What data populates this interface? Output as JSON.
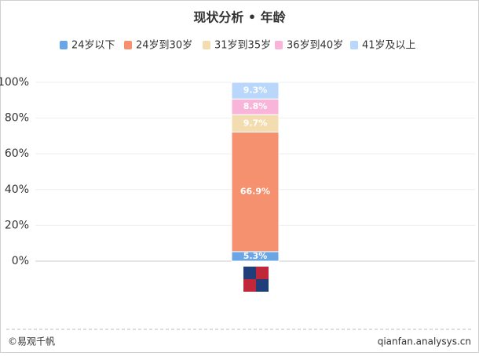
{
  "chart_data": {
    "type": "stacked_bar",
    "title": "现状分析 • 年龄",
    "categories": [
      null
    ],
    "series": [
      {
        "name": "24岁以下",
        "color": "#6aa5e6",
        "values": [
          5.3
        ],
        "value_labels": [
          "5.3%"
        ]
      },
      {
        "name": "24岁到30岁",
        "color": "#f5916f",
        "values": [
          66.9
        ],
        "value_labels": [
          "66.9%"
        ]
      },
      {
        "name": "31岁到35岁",
        "color": "#f3dcaf",
        "values": [
          9.7
        ],
        "value_labels": [
          "9.7%"
        ]
      },
      {
        "name": "36岁到40岁",
        "color": "#f9b4d9",
        "values": [
          8.8
        ],
        "value_labels": [
          "8.8%"
        ]
      },
      {
        "name": "41岁及以上",
        "color": "#b9d7fb",
        "values": [
          9.3
        ],
        "value_labels": [
          "9.3%"
        ]
      }
    ],
    "ylim": [
      0,
      100
    ],
    "yticks": [
      {
        "value": 0,
        "label": "0%"
      },
      {
        "value": 20,
        "label": "20%"
      },
      {
        "value": 40,
        "label": "40%"
      },
      {
        "value": 60,
        "label": "60%"
      },
      {
        "value": 80,
        "label": "80%"
      },
      {
        "value": 100,
        "label": "100%"
      }
    ],
    "grid": true,
    "legend": "top",
    "footer_left": "©易观千帆",
    "footer_right": "qianfan.analysys.cn"
  }
}
